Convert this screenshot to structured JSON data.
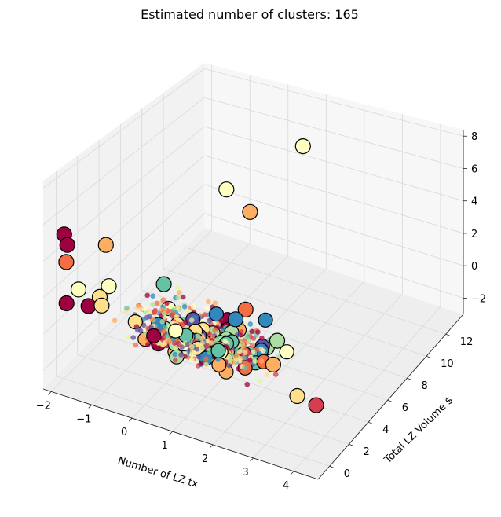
{
  "chart_data": {
    "type": "scatter",
    "projection": "3d",
    "title": "Estimated number of clusters: 165",
    "xlabel": "Number of LZ tx",
    "ylabel": "Total LZ Volume $",
    "zlabel": "",
    "xlim": [
      -2.2,
      4.6
    ],
    "ylim": [
      -1.2,
      13.8
    ],
    "zlim": [
      -3.0,
      8.4
    ],
    "x_ticks": [
      "−2",
      "−1",
      "0",
      "1",
      "2",
      "3",
      "4"
    ],
    "y_ticks": [
      "0",
      "2",
      "4",
      "6",
      "8",
      "10",
      "12"
    ],
    "z_ticks": [
      "−2",
      "0",
      "2",
      "4",
      "6",
      "8"
    ],
    "grid": true,
    "colormap": "Spectral",
    "n_clusters": 165,
    "core_samples": {
      "marker": "o",
      "size": "small",
      "edgecolor": "none"
    },
    "non_core_samples": {
      "marker": "o",
      "size": "large",
      "edgecolor": "#000000"
    },
    "outliers": [
      {
        "x": -2.05,
        "y": 0.2,
        "z": 4.9,
        "color": "#9e0142"
      },
      {
        "x": -2.0,
        "y": 0.3,
        "z": 4.3,
        "color": "#9e0142"
      },
      {
        "x": -2.0,
        "y": 0.2,
        "z": 3.4,
        "color": "#f46d43"
      },
      {
        "x": -1.2,
        "y": 0.9,
        "z": 4.6,
        "color": "#fdae61"
      },
      {
        "x": -1.8,
        "y": 0.6,
        "z": 1.8,
        "color": "#ffffbf"
      },
      {
        "x": -1.1,
        "y": 0.8,
        "z": 2.4,
        "color": "#ffffbf"
      },
      {
        "x": -1.3,
        "y": 0.7,
        "z": 1.7,
        "color": "#fee08b"
      },
      {
        "x": -1.5,
        "y": 0.4,
        "z": 1.2,
        "color": "#9e0142"
      },
      {
        "x": -1.2,
        "y": 0.5,
        "z": 1.4,
        "color": "#fee08b"
      },
      {
        "x": -2.1,
        "y": 0.6,
        "z": 0.8,
        "color": "#9e0142"
      },
      {
        "x": -0.3,
        "y": 3.0,
        "z": 1.9,
        "color": "#66c2a5"
      },
      {
        "x": 0.6,
        "y": 5.6,
        "z": 6.7,
        "color": "#ffffbf"
      },
      {
        "x": 1.2,
        "y": 5.6,
        "z": 5.8,
        "color": "#fdae61"
      },
      {
        "x": 1.8,
        "y": 8.5,
        "z": 8.6,
        "color": "#ffffbf"
      },
      {
        "x": 1.5,
        "y": 4.0,
        "z": 1.2,
        "color": "#f46d43"
      },
      {
        "x": 1.3,
        "y": 3.8,
        "z": 0.6,
        "color": "#3288bd"
      },
      {
        "x": 3.9,
        "y": 1.5,
        "z": -1.0,
        "color": "#d53e4f"
      },
      {
        "x": 3.5,
        "y": 1.2,
        "z": -0.6,
        "color": "#fee08b"
      },
      {
        "x": 2.4,
        "y": 3.6,
        "z": 0.3,
        "color": "#abdda4"
      },
      {
        "x": 2.6,
        "y": 2.4,
        "z": -0.2,
        "color": "#fdae61"
      }
    ],
    "colors": {
      "spectral": [
        "#9e0142",
        "#d53e4f",
        "#f46d43",
        "#fdae61",
        "#fee08b",
        "#ffffbf",
        "#e6f598",
        "#abdda4",
        "#66c2a5",
        "#3288bd",
        "#5e4fa2"
      ],
      "grid": "#d9d9d9",
      "pane_left": "#f2f2f2",
      "pane_back": "#f7f7f7",
      "pane_floor": "#eeeeee"
    }
  }
}
